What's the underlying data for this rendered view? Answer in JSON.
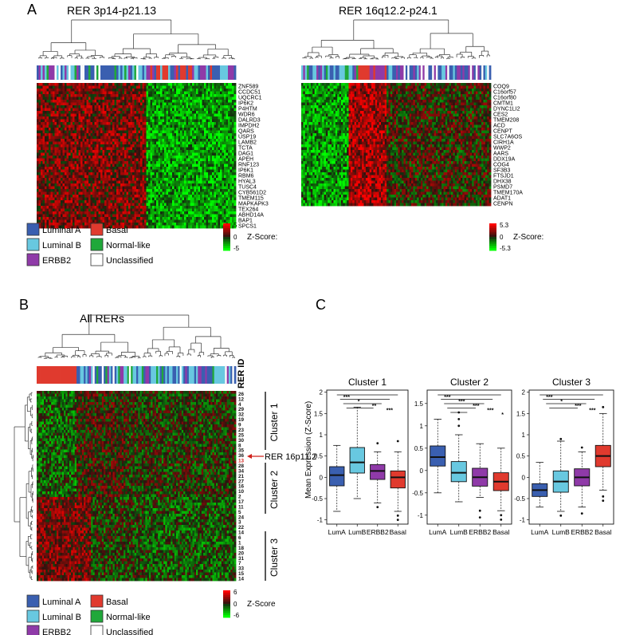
{
  "panel_letters": {
    "a": "A",
    "b": "B",
    "c": "C"
  },
  "panel_a": {
    "left": {
      "title": "RER 3p14-p21.13",
      "genes": [
        "ZNF589",
        "CCDC51",
        "UQCRC1",
        "IP6K2",
        "P4HTM",
        "WDR6",
        "DALRD3",
        "IMPDH2",
        "QARS",
        "USP19",
        "LAMB2",
        "TCTA",
        "DAG1",
        "APEH",
        "RNF123",
        "IP6K1",
        "RBM6",
        "HYAL3",
        "TUSC4",
        "CYB561D2",
        "TMEM115",
        "MAPKAPK3",
        "TEX264",
        "ABHD14A",
        "BAP1",
        "SPCS1"
      ]
    },
    "right": {
      "title": "RER 16q12.2-p24.1",
      "genes": [
        "COQ9",
        "C16orf57",
        "C16orf80",
        "CMTM1",
        "DYNC1LI2",
        "CES2",
        "TMEM208",
        "ACD",
        "CENPT",
        "SLC7A6OS",
        "CIRH1A",
        "WWP2",
        "AARS",
        "DDX19A",
        "COG4",
        "SF3B3",
        "FTSJD1",
        "DHX38",
        "PSMD7",
        "TMEM170A",
        "ADAT1",
        "CENPN"
      ]
    },
    "scale_left": {
      "max": "5",
      "mid": "0",
      "min": "-5",
      "label": "Z-Score:"
    },
    "scale_right": {
      "max": "5.3",
      "mid": "0",
      "min": "-5.3",
      "label": "Z-Score:"
    }
  },
  "subtypes": [
    {
      "label": "Luminal A",
      "color": "#3a5fb0"
    },
    {
      "label": "Luminal B",
      "color": "#68c8e0"
    },
    {
      "label": "ERBB2",
      "color": "#8f3aa8"
    },
    {
      "label": "Basal",
      "color": "#e03a2e"
    },
    {
      "label": "Normal-like",
      "color": "#20a83a"
    },
    {
      "label": "Unclassified",
      "color": "#ffffff"
    }
  ],
  "panel_b": {
    "title": "All RERs",
    "rer_id_label": "RER ID",
    "row_ids": [
      "26",
      "12",
      "4",
      "29",
      "32",
      "19",
      "9",
      "23",
      "25",
      "30",
      "8",
      "35",
      "36",
      "13",
      "28",
      "34",
      "21",
      "27",
      "16",
      "10",
      "2",
      "17",
      "11",
      "5",
      "24",
      "3",
      "22",
      "14",
      "6",
      "1",
      "18",
      "20",
      "31",
      "7",
      "33",
      "15",
      "14"
    ],
    "highlight_label": "RER 16p11.2",
    "clusters": [
      "Cluster 1",
      "Cluster 2",
      "Cluster 3"
    ],
    "scale": {
      "max": "6",
      "mid": "0",
      "min": "-6",
      "label": "Z-Score"
    }
  },
  "panel_c": {
    "ylabel": "Mean Expression (Z-Score)",
    "categories": [
      "LumA",
      "LumB",
      "ERBB2",
      "Basal"
    ],
    "colors": [
      "#3a5fb0",
      "#68c8e0",
      "#8f3aa8",
      "#e03a2e"
    ]
  },
  "chart_data": [
    {
      "type": "box",
      "title": "Cluster 1",
      "categories": [
        "LumA",
        "LumB",
        "ERBB2",
        "Basal"
      ],
      "ylabel": "Mean Expression (Z-Score)",
      "ylim": [
        -1.1,
        2.05
      ],
      "yticks": [
        -1,
        -0.5,
        0,
        0.5,
        1,
        1.5,
        2
      ],
      "boxes": [
        {
          "q1": -0.2,
          "median": 0.05,
          "q3": 0.25,
          "lo": -0.8,
          "hi": 0.75,
          "outliers": []
        },
        {
          "q1": 0.1,
          "median": 0.35,
          "q3": 0.7,
          "lo": -0.5,
          "hi": 1.65,
          "outliers": []
        },
        {
          "q1": -0.05,
          "median": 0.15,
          "q3": 0.3,
          "lo": -0.6,
          "hi": 0.6,
          "outliers": [
            0.8,
            -0.7
          ]
        },
        {
          "q1": -0.25,
          "median": 0.0,
          "q3": 0.15,
          "lo": -0.8,
          "hi": 0.6,
          "outliers": [
            0.85,
            -0.9,
            -1.0
          ]
        }
      ],
      "significance": [
        "***",
        "*",
        "**",
        "***"
      ]
    },
    {
      "type": "box",
      "title": "Cluster 2",
      "categories": [
        "LumA",
        "LumB",
        "ERBB2",
        "Basal"
      ],
      "ylim": [
        -1.2,
        1.8
      ],
      "yticks": [
        -1,
        -0.5,
        0,
        0.5,
        1,
        1.5
      ],
      "boxes": [
        {
          "q1": 0.1,
          "median": 0.3,
          "q3": 0.55,
          "lo": -0.5,
          "hi": 1.15,
          "outliers": []
        },
        {
          "q1": -0.25,
          "median": -0.05,
          "q3": 0.2,
          "lo": -0.7,
          "hi": 0.8,
          "outliers": [
            1.0,
            1.15,
            1.3
          ]
        },
        {
          "q1": -0.35,
          "median": -0.15,
          "q3": 0.05,
          "lo": -0.6,
          "hi": 0.6,
          "outliers": [
            -0.9,
            -1.05
          ]
        },
        {
          "q1": -0.45,
          "median": -0.25,
          "q3": -0.05,
          "lo": -0.9,
          "hi": 0.5,
          "outliers": [
            -1.0,
            -1.1
          ]
        }
      ],
      "significance": [
        "***",
        "***",
        "***",
        "***",
        "*"
      ]
    },
    {
      "type": "box",
      "title": "Cluster 3",
      "categories": [
        "LumA",
        "LumB",
        "ERBB2",
        "Basal"
      ],
      "ylim": [
        -1.1,
        2.05
      ],
      "yticks": [
        -1,
        -0.5,
        0,
        0.5,
        1,
        1.5,
        2
      ],
      "boxes": [
        {
          "q1": -0.45,
          "median": -0.3,
          "q3": -0.15,
          "lo": -0.7,
          "hi": 0.35,
          "outliers": []
        },
        {
          "q1": -0.35,
          "median": -0.1,
          "q3": 0.15,
          "lo": -0.8,
          "hi": 0.85,
          "outliers": [
            0.9,
            -0.9
          ]
        },
        {
          "q1": -0.2,
          "median": 0.0,
          "q3": 0.2,
          "lo": -0.7,
          "hi": 0.6,
          "outliers": [
            0.7,
            -0.85
          ]
        },
        {
          "q1": 0.25,
          "median": 0.5,
          "q3": 0.75,
          "lo": -0.3,
          "hi": 1.5,
          "outliers": [
            1.65,
            -0.45,
            -0.55
          ]
        }
      ],
      "significance": [
        "***",
        "*",
        "***",
        "***"
      ]
    }
  ]
}
